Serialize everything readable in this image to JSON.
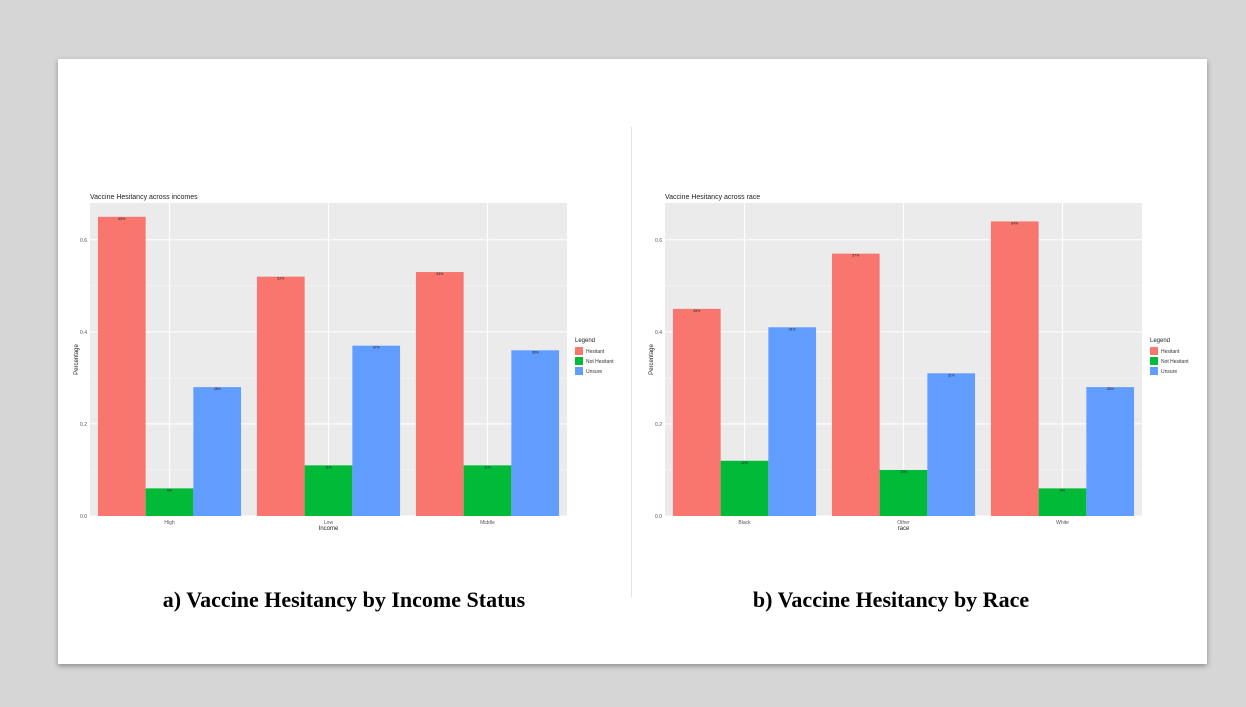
{
  "colors": {
    "background": "#d6d6d6",
    "slide": "#ffffff",
    "panel": "#ebebeb",
    "hesitant": "#f8766d",
    "not_hesitant": "#00ba38",
    "unsure": "#619cff"
  },
  "captions": {
    "a": "a) Vaccine Hesitancy by Income Status",
    "b": "b) Vaccine Hesitancy by Race"
  },
  "chart_data": [
    {
      "type": "bar",
      "title": "Vaccine Hesitancy across incomes",
      "xlabel": "Income",
      "ylabel": "Percentage",
      "categories": [
        "High",
        "Low",
        "Middle"
      ],
      "ylim": [
        0,
        0.68
      ],
      "yticks": [
        0,
        0.2,
        0.4,
        0.6
      ],
      "ytick_labels": [
        "0.0",
        "0.2",
        "0.4",
        "0.6"
      ],
      "grid": true,
      "legend_title": "Legend",
      "legend_position": "right",
      "series": [
        {
          "name": "Hesitant",
          "color": "#f8766d",
          "values": [
            0.65,
            0.52,
            0.53
          ],
          "labels": [
            "65%",
            "52%",
            "53%"
          ]
        },
        {
          "name": "Not Hesitant",
          "color": "#00ba38",
          "values": [
            0.06,
            0.11,
            0.11
          ],
          "labels": [
            "6%",
            "11%",
            "11%"
          ]
        },
        {
          "name": "Unsure",
          "color": "#619cff",
          "values": [
            0.28,
            0.37,
            0.36
          ],
          "labels": [
            "28%",
            "37%",
            "36%"
          ]
        }
      ]
    },
    {
      "type": "bar",
      "title": "Vaccine Hesitancy across race",
      "xlabel": "race",
      "ylabel": "Percentage",
      "categories": [
        "Black",
        "Other",
        "White"
      ],
      "ylim": [
        0,
        0.68
      ],
      "yticks": [
        0,
        0.2,
        0.4,
        0.6
      ],
      "ytick_labels": [
        "0.0",
        "0.2",
        "0.4",
        "0.6"
      ],
      "grid": true,
      "legend_title": "Legend",
      "legend_position": "right",
      "series": [
        {
          "name": "Hesitant",
          "color": "#f8766d",
          "values": [
            0.45,
            0.57,
            0.64
          ],
          "labels": [
            "45%",
            "57%",
            "64%"
          ]
        },
        {
          "name": "Not Hesitant",
          "color": "#00ba38",
          "values": [
            0.12,
            0.1,
            0.06
          ],
          "labels": [
            "12%",
            "10%",
            "6%"
          ]
        },
        {
          "name": "Unsure",
          "color": "#619cff",
          "values": [
            0.41,
            0.31,
            0.28
          ],
          "labels": [
            "41%",
            "31%",
            "28%"
          ]
        }
      ]
    }
  ]
}
